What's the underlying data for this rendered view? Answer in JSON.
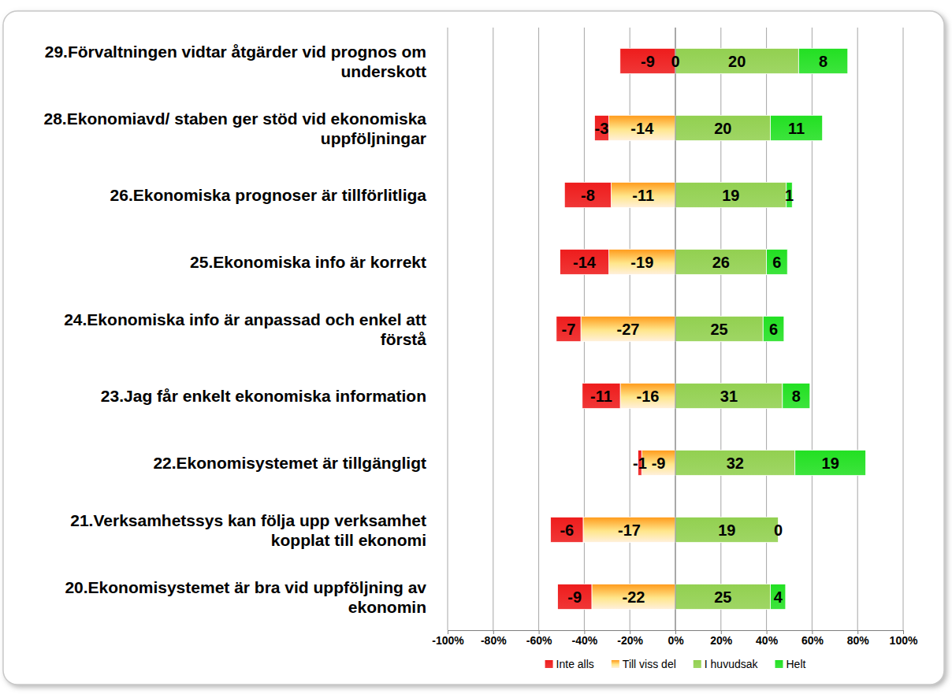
{
  "chart_data": {
    "type": "bar",
    "orientation": "horizontal",
    "stacked": true,
    "grid": true,
    "legend": "bottom",
    "categories": [
      "29.Förvaltningen vidtar åtgärder vid prognos om underskott",
      "28.Ekonomiavd/ staben ger stöd vid ekonomiska uppföljningar",
      "26.Ekonomiska prognoser är tillförlitliga",
      "25.Ekonomiska info är korrekt",
      "24.Ekonomiska info är anpassad och enkel att förstå",
      "23.Jag får enkelt ekonomiska information",
      "22.Ekonomisystemet är tillgängligt",
      "21.Verksamhetssys kan följa upp verksamhet kopplat till ekonomi",
      "20.Ekonomisystemet är bra vid uppföljning av ekonomin"
    ],
    "series": [
      {
        "name": "Inte alls",
        "color": "#ee1c1c",
        "values": [
          -24.3,
          -6.3,
          -20.5,
          -21.5,
          -10.8,
          -16.7,
          -1.6,
          -14.3,
          -15.0
        ],
        "counts": [
          -9,
          -3,
          -8,
          -14,
          -7,
          -11,
          -1,
          -6,
          -9
        ]
      },
      {
        "name": "Till viss del",
        "color": "#ff9a1a",
        "values": [
          0,
          -29.2,
          -28.2,
          -29.2,
          -41.5,
          -24.2,
          -14.8,
          -40.5,
          -36.7
        ],
        "counts": [
          0,
          -14,
          -11,
          -19,
          -27,
          -16,
          -9,
          -17,
          -22
        ]
      },
      {
        "name": "I huvudsak",
        "color": "#92d050",
        "values": [
          54.1,
          41.7,
          48.7,
          40.0,
          38.5,
          47.0,
          52.5,
          45.2,
          41.7
        ],
        "counts": [
          20,
          20,
          19,
          26,
          25,
          31,
          32,
          19,
          25
        ]
      },
      {
        "name": "Helt",
        "color": "#22e022",
        "values": [
          21.6,
          22.9,
          2.6,
          9.2,
          9.2,
          12.1,
          31.1,
          0,
          6.7
        ],
        "counts": [
          8,
          11,
          1,
          6,
          6,
          8,
          19,
          0,
          4
        ]
      }
    ],
    "xlim": [
      -100,
      100
    ],
    "xticks": [
      {
        "value": -100,
        "label": "-100%"
      },
      {
        "value": -80,
        "label": "-80%"
      },
      {
        "value": -60,
        "label": "-60%"
      },
      {
        "value": -40,
        "label": "-40%"
      },
      {
        "value": -20,
        "label": "-20%"
      },
      {
        "value": 0,
        "label": "0%"
      },
      {
        "value": 20,
        "label": "20%"
      },
      {
        "value": 40,
        "label": "40%"
      },
      {
        "value": 60,
        "label": "60%"
      },
      {
        "value": 80,
        "label": "80%"
      },
      {
        "value": 100,
        "label": "100%"
      }
    ]
  }
}
